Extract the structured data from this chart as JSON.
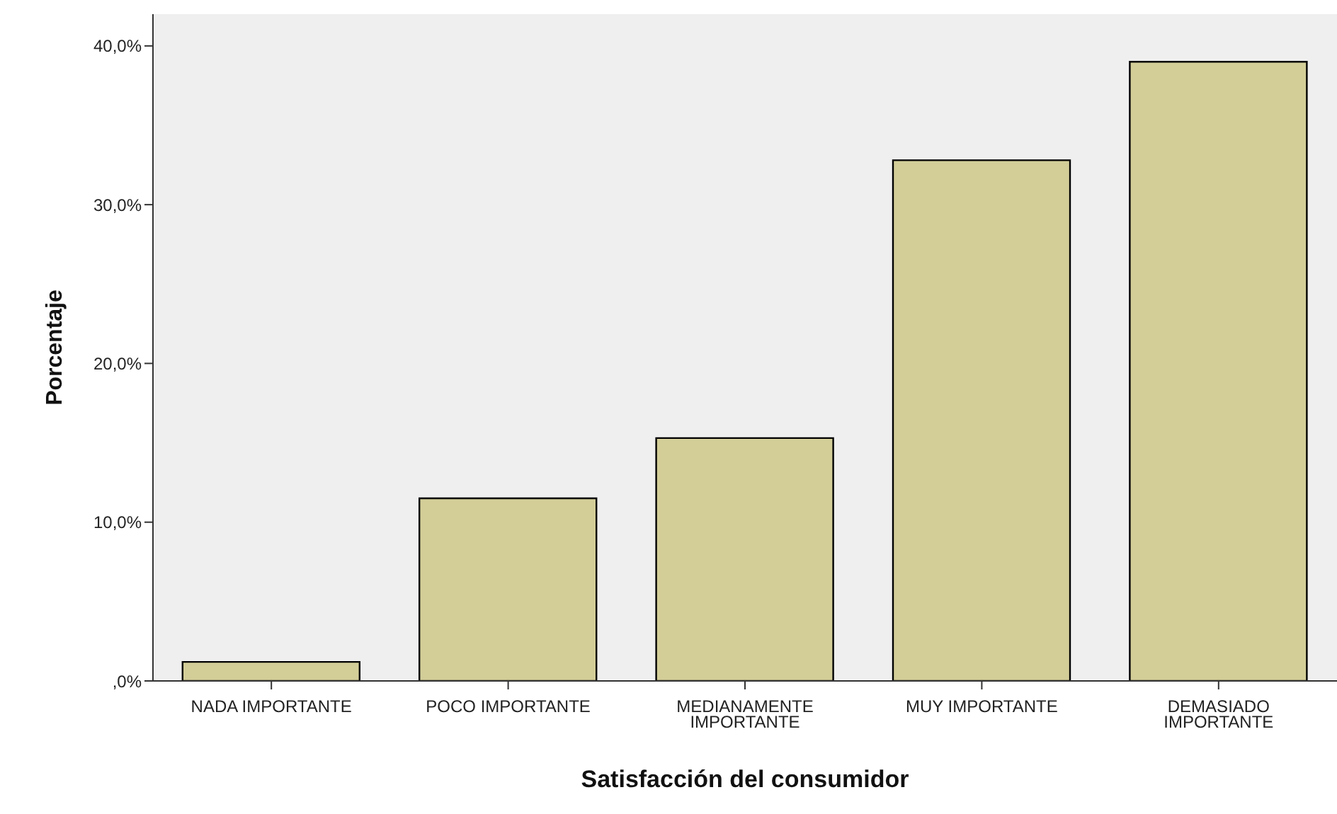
{
  "chart_data": {
    "type": "bar",
    "xlabel": "Satisfacción del consumidor",
    "ylabel": "Porcentaje",
    "categories": [
      "NADA IMPORTANTE",
      "POCO IMPORTANTE",
      "MEDIANAMENTE IMPORTANTE",
      "MUY IMPORTANTE",
      "DEMASIADO IMPORTANTE"
    ],
    "values": [
      1.2,
      11.5,
      15.3,
      32.8,
      39.0
    ],
    "color": "#d3ce98",
    "ylim": [
      0,
      42
    ],
    "yticks": [
      {
        "value": 0,
        "label": ",0%"
      },
      {
        "value": 10,
        "label": "10,0%"
      },
      {
        "value": 20,
        "label": "20,0%"
      },
      {
        "value": 30,
        "label": "30,0%"
      },
      {
        "value": 40,
        "label": "40,0%"
      }
    ],
    "grid": false,
    "legend": false
  }
}
